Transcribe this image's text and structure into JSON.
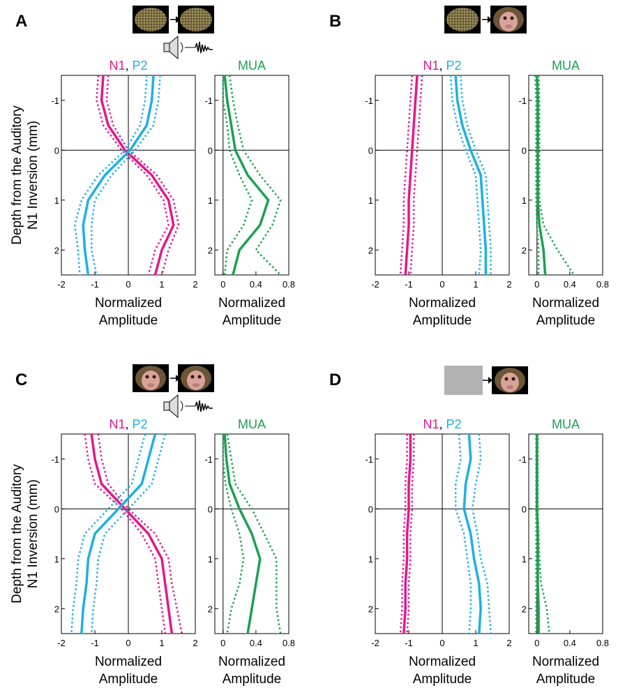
{
  "chart_data": [
    {
      "type": "line",
      "panel": "A",
      "separator": ",",
      "ylabel": [
        "Depth from the Auditory",
        "N1 Inversion (mm)"
      ],
      "xlabel": [
        "Normalized",
        "Amplitude"
      ],
      "y": [
        -1.5,
        -1,
        -0.5,
        0,
        0.5,
        1,
        1.5,
        2,
        2.5
      ],
      "ylim": [
        -1.5,
        2.5
      ],
      "yticks": [
        -1,
        0,
        1,
        2
      ],
      "xlim": [
        -2,
        2
      ],
      "xticks": [
        -2,
        -1,
        0,
        1,
        2
      ],
      "series": [
        {
          "name": "N1",
          "color": "#e6168a",
          "values": [
            -0.75,
            -0.8,
            -0.6,
            -0.1,
            0.7,
            1.2,
            1.35,
            1.0,
            0.8
          ],
          "lower": [
            -0.9,
            -0.95,
            -0.75,
            -0.2,
            0.55,
            1.05,
            1.2,
            0.8,
            0.6
          ],
          "upper": [
            -0.6,
            -0.65,
            -0.45,
            0.0,
            0.85,
            1.35,
            1.5,
            1.2,
            1.0
          ]
        },
        {
          "name": "P2",
          "color": "#1ab0e8",
          "values": [
            0.75,
            0.7,
            0.55,
            0.05,
            -0.7,
            -1.2,
            -1.35,
            -1.3,
            -1.2
          ],
          "lower": [
            0.55,
            0.5,
            0.35,
            -0.1,
            -0.9,
            -1.4,
            -1.6,
            -1.5,
            -1.45
          ],
          "upper": [
            0.95,
            0.9,
            0.75,
            0.2,
            -0.5,
            -1.0,
            -1.1,
            -1.1,
            -0.95
          ]
        }
      ]
    },
    {
      "type": "line",
      "xlabel": [
        "Normalized",
        "Amplitude"
      ],
      "y": [
        -1.5,
        -1,
        -0.5,
        0,
        0.5,
        1,
        1.5,
        2,
        2.5
      ],
      "ylim": [
        -1.5,
        2.5
      ],
      "yticks": [
        -1,
        0,
        1,
        2
      ],
      "xlim": [
        -0.1,
        0.8
      ],
      "xticks": [
        0,
        0.4,
        0.8
      ],
      "series": [
        {
          "name": "MUA",
          "color": "#1aa050",
          "values": [
            0.02,
            0.05,
            0.1,
            0.15,
            0.3,
            0.55,
            0.45,
            0.2,
            0.12
          ],
          "lower": [
            0.0,
            0.0,
            0.05,
            0.08,
            0.2,
            0.35,
            0.25,
            0.05,
            0.02
          ],
          "upper": [
            0.08,
            0.12,
            0.18,
            0.25,
            0.45,
            0.7,
            0.6,
            0.4,
            0.7
          ]
        }
      ]
    },
    {
      "type": "line",
      "panel": "B",
      "separator": ",",
      "xlabel": [
        "Normalized",
        "Amplitude"
      ],
      "y": [
        -1.5,
        -1,
        -0.5,
        0,
        0.5,
        1,
        1.5,
        2,
        2.5
      ],
      "ylim": [
        -1.5,
        2.5
      ],
      "yticks": [
        -1,
        0,
        1,
        2
      ],
      "xlim": [
        -2,
        2
      ],
      "xticks": [
        -2,
        -1,
        0,
        1,
        2
      ],
      "series": [
        {
          "name": "N1",
          "color": "#e6168a",
          "values": [
            -0.75,
            -0.8,
            -0.85,
            -0.9,
            -0.95,
            -1.0,
            -1.0,
            -1.05,
            -1.1
          ],
          "lower": [
            -0.9,
            -0.95,
            -1.0,
            -1.05,
            -1.1,
            -1.15,
            -1.15,
            -1.2,
            -1.25
          ],
          "upper": [
            -0.6,
            -0.65,
            -0.7,
            -0.75,
            -0.8,
            -0.85,
            -0.85,
            -0.9,
            -0.95
          ]
        },
        {
          "name": "P2",
          "color": "#1ab0e8",
          "values": [
            0.4,
            0.45,
            0.6,
            0.85,
            1.15,
            1.2,
            1.25,
            1.3,
            1.3
          ],
          "lower": [
            0.25,
            0.3,
            0.45,
            0.7,
            1.0,
            1.05,
            1.1,
            1.15,
            1.1
          ],
          "upper": [
            0.55,
            0.6,
            0.75,
            1.0,
            1.3,
            1.35,
            1.4,
            1.45,
            1.45
          ]
        }
      ]
    },
    {
      "type": "line",
      "xlabel": [
        "Normalized",
        "Amplitude"
      ],
      "y": [
        -1.5,
        -1,
        -0.5,
        0,
        0.5,
        1,
        1.5,
        2,
        2.5
      ],
      "ylim": [
        -1.5,
        2.5
      ],
      "yticks": [
        -1,
        0,
        1,
        2
      ],
      "xlim": [
        -0.1,
        0.8
      ],
      "xticks": [
        0,
        0.4,
        0.8
      ],
      "series": [
        {
          "name": "MUA",
          "color": "#1aa050",
          "values": [
            0.0,
            0.01,
            0.01,
            0.01,
            0.01,
            0.01,
            0.03,
            0.08,
            0.1
          ],
          "lower": [
            -0.02,
            -0.01,
            -0.01,
            -0.01,
            -0.01,
            -0.01,
            0.0,
            0.02,
            0.02
          ],
          "upper": [
            0.02,
            0.03,
            0.03,
            0.03,
            0.03,
            0.03,
            0.08,
            0.25,
            0.45
          ]
        }
      ]
    },
    {
      "type": "line",
      "panel": "C",
      "separator": ",",
      "ylabel": [
        "Depth from the Auditory",
        "N1 Inversion (mm)"
      ],
      "xlabel": [
        "Normalized",
        "Amplitude"
      ],
      "y": [
        -1.5,
        -1,
        -0.5,
        0,
        0.5,
        1,
        1.5,
        2,
        2.5
      ],
      "ylim": [
        -1.5,
        2.5
      ],
      "yticks": [
        -1,
        0,
        1,
        2
      ],
      "xlim": [
        -2,
        2
      ],
      "xticks": [
        -2,
        -1,
        0,
        1,
        2
      ],
      "series": [
        {
          "name": "N1",
          "color": "#e6168a",
          "values": [
            -1.1,
            -1.0,
            -0.8,
            -0.1,
            0.6,
            1.0,
            1.1,
            1.2,
            1.3
          ],
          "lower": [
            -1.3,
            -1.2,
            -1.0,
            -0.2,
            0.4,
            0.8,
            0.9,
            1.0,
            1.1
          ],
          "upper": [
            -0.9,
            -0.8,
            -0.6,
            0.0,
            0.8,
            1.2,
            1.3,
            1.45,
            1.6
          ]
        },
        {
          "name": "P2",
          "color": "#1ab0e8",
          "values": [
            0.8,
            0.6,
            0.4,
            -0.3,
            -1.0,
            -1.2,
            -1.25,
            -1.35,
            -1.4
          ],
          "lower": [
            0.5,
            0.3,
            0.1,
            -0.6,
            -1.3,
            -1.5,
            -1.55,
            -1.65,
            -1.7
          ],
          "upper": [
            1.1,
            0.9,
            0.7,
            0.0,
            -0.7,
            -0.9,
            -0.95,
            -1.05,
            -1.1
          ]
        }
      ]
    },
    {
      "type": "line",
      "xlabel": [
        "Normalized",
        "Amplitude"
      ],
      "y": [
        -1.5,
        -1,
        -0.5,
        0,
        0.5,
        1,
        1.5,
        2,
        2.5
      ],
      "ylim": [
        -1.5,
        2.5
      ],
      "yticks": [
        -1,
        0,
        1,
        2
      ],
      "xlim": [
        -0.1,
        0.8
      ],
      "xticks": [
        0,
        0.4,
        0.8
      ],
      "series": [
        {
          "name": "MUA",
          "color": "#1aa050",
          "values": [
            0.02,
            0.04,
            0.08,
            0.2,
            0.35,
            0.45,
            0.4,
            0.35,
            0.3
          ],
          "lower": [
            0.0,
            0.0,
            0.03,
            0.1,
            0.2,
            0.25,
            0.2,
            0.1,
            0.05
          ],
          "upper": [
            0.05,
            0.1,
            0.15,
            0.35,
            0.5,
            0.65,
            0.65,
            0.65,
            0.7
          ]
        }
      ]
    },
    {
      "type": "line",
      "panel": "D",
      "separator": ",",
      "xlabel": [
        "Normalized",
        "Amplitude"
      ],
      "y": [
        -1.5,
        -1,
        -0.5,
        0,
        0.5,
        1,
        1.5,
        2,
        2.5
      ],
      "ylim": [
        -1.5,
        2.5
      ],
      "yticks": [
        -1,
        0,
        1,
        2
      ],
      "xlim": [
        -2,
        2
      ],
      "xticks": [
        -2,
        -1,
        0,
        1,
        2
      ],
      "series": [
        {
          "name": "N1",
          "color": "#e6168a",
          "values": [
            -0.95,
            -0.95,
            -1.0,
            -1.0,
            -1.05,
            -1.05,
            -1.1,
            -1.1,
            -1.15
          ],
          "lower": [
            -1.05,
            -1.05,
            -1.1,
            -1.1,
            -1.15,
            -1.15,
            -1.2,
            -1.2,
            -1.25
          ],
          "upper": [
            -0.85,
            -0.85,
            -0.9,
            -0.9,
            -0.95,
            -0.95,
            -1.0,
            -1.0,
            -1.05
          ]
        },
        {
          "name": "P2",
          "color": "#1ab0e8",
          "values": [
            0.8,
            0.85,
            0.7,
            0.65,
            0.85,
            0.95,
            1.1,
            1.15,
            1.1
          ],
          "lower": [
            0.5,
            0.55,
            0.4,
            0.4,
            0.65,
            0.75,
            0.85,
            0.85,
            0.8
          ],
          "upper": [
            1.1,
            1.15,
            1.0,
            0.9,
            1.05,
            1.15,
            1.35,
            1.4,
            1.45
          ]
        }
      ]
    },
    {
      "type": "line",
      "xlabel": [
        "Normalized",
        "Amplitude"
      ],
      "y": [
        -1.5,
        -1,
        -0.5,
        0,
        0.5,
        1,
        1.5,
        2,
        2.5
      ],
      "ylim": [
        -1.5,
        2.5
      ],
      "yticks": [
        -1,
        0,
        1,
        2
      ],
      "xlim": [
        -0.1,
        0.8
      ],
      "xticks": [
        0,
        0.4,
        0.8
      ],
      "series": [
        {
          "name": "MUA",
          "color": "#1aa050",
          "values": [
            0.0,
            0.0,
            0.0,
            0.0,
            0.01,
            0.01,
            0.01,
            0.02,
            0.02
          ],
          "lower": [
            -0.01,
            -0.01,
            -0.01,
            -0.01,
            -0.01,
            -0.01,
            -0.01,
            -0.01,
            -0.01
          ],
          "upper": [
            0.01,
            0.01,
            0.01,
            0.01,
            0.02,
            0.03,
            0.05,
            0.12,
            0.15
          ]
        }
      ]
    }
  ]
}
